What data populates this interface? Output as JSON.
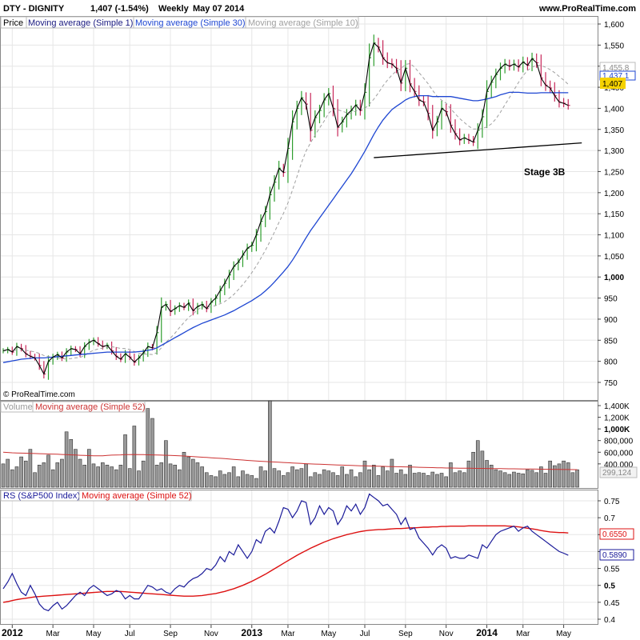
{
  "header": {
    "ticker": "DTY - DIGNITY",
    "quote": "1,407 (-1.54%)",
    "period": "Weekly",
    "date": "May 07 2014",
    "site": "www.ProRealTime.com"
  },
  "copyright": "© ProRealTime.com",
  "colors": {
    "up_bar": "#2e9e2e",
    "down_bar": "#c8285a",
    "ma1": "#000000",
    "ma30": "#1e46d2",
    "ma10": "#a0a0a0",
    "volume_ma": "#cc3333",
    "rs_line": "#1a1a99",
    "rs_ma": "#dd1111",
    "last_price_box": "#f5d200",
    "grid": "#e6e6e6"
  },
  "price_panel": {
    "legend": [
      {
        "label": "Price",
        "color": "#000000"
      },
      {
        "label": "Moving average (Simple 1)",
        "color": "#1a1a80"
      },
      {
        "label": "Moving average (Simple 30)",
        "color": "#1e46d2"
      },
      {
        "label": "Moving average (Simple 10)",
        "color": "#a0a0a0"
      }
    ],
    "annotation": "Stage 3B",
    "value_labels": {
      "ma10": "1,455.8",
      "ma30": "1,437.1",
      "last": "1,407"
    },
    "y_ticks": [
      "1,600",
      "1,550",
      "1,500",
      "1,450",
      "1,400",
      "1,350",
      "1,300",
      "1,250",
      "1,200",
      "1,150",
      "1,100",
      "1,050",
      "1,000",
      "950",
      "900",
      "850",
      "800",
      "750"
    ],
    "bold_ticks": [
      "1,500",
      "1,000"
    ]
  },
  "volume_panel": {
    "legend": [
      {
        "label": "Volume",
        "color": "#999999"
      },
      {
        "label": "Moving average (Simple 52)",
        "color": "#cc3333"
      }
    ],
    "y_ticks": [
      "1,400K",
      "1,200K",
      "1,000K",
      "800,000",
      "600,000",
      "400,000"
    ],
    "bold_ticks": [
      "1,000K"
    ],
    "value_label": "299,124"
  },
  "rs_panel": {
    "legend": [
      {
        "label": "RS (S&P500 Index)",
        "color": "#1a1a99"
      },
      {
        "label": "Moving average (Simple 52)",
        "color": "#dd1111"
      }
    ],
    "y_ticks": [
      "0.75",
      "0.7",
      "0.65",
      "0.6",
      "0.55",
      "0.5",
      "0.45",
      "0.4"
    ],
    "bold_ticks": [
      "0.5"
    ],
    "value_labels": {
      "rs_ma": "0.6550",
      "rs": "0.5890"
    }
  },
  "x_axis": {
    "labels": [
      {
        "text": "2012",
        "bold": true,
        "week": 2
      },
      {
        "text": "Mar",
        "bold": false,
        "week": 11
      },
      {
        "text": "May",
        "bold": false,
        "week": 20
      },
      {
        "text": "Jul",
        "bold": false,
        "week": 28
      },
      {
        "text": "Sep",
        "bold": false,
        "week": 37
      },
      {
        "text": "Nov",
        "bold": false,
        "week": 46
      },
      {
        "text": "2013",
        "bold": true,
        "week": 55
      },
      {
        "text": "Mar",
        "bold": false,
        "week": 63
      },
      {
        "text": "May",
        "bold": false,
        "week": 72
      },
      {
        "text": "Jul",
        "bold": false,
        "week": 80
      },
      {
        "text": "Sep",
        "bold": false,
        "week": 89
      },
      {
        "text": "Nov",
        "bold": false,
        "week": 98
      },
      {
        "text": "2014",
        "bold": true,
        "week": 107
      },
      {
        "text": "Mar",
        "bold": false,
        "week": 115
      },
      {
        "text": "May",
        "bold": false,
        "week": 124
      }
    ]
  },
  "chart_data": {
    "type": "line",
    "x_unit": "week",
    "price": {
      "ylim": [
        740,
        1625
      ],
      "close": [
        825,
        828,
        822,
        835,
        830,
        818,
        812,
        808,
        790,
        770,
        800,
        810,
        816,
        808,
        822,
        830,
        828,
        818,
        835,
        845,
        850,
        842,
        835,
        838,
        825,
        812,
        805,
        818,
        810,
        798,
        808,
        820,
        835,
        832,
        868,
        928,
        935,
        918,
        925,
        932,
        928,
        938,
        920,
        930,
        935,
        925,
        940,
        950,
        968,
        985,
        1005,
        1025,
        1035,
        1052,
        1068,
        1075,
        1100,
        1132,
        1155,
        1195,
        1225,
        1258,
        1248,
        1305,
        1368,
        1400,
        1425,
        1410,
        1348,
        1378,
        1395,
        1420,
        1435,
        1400,
        1355,
        1368,
        1385,
        1395,
        1408,
        1395,
        1438,
        1520,
        1555,
        1545,
        1520,
        1508,
        1505,
        1495,
        1460,
        1495,
        1458,
        1440,
        1420,
        1415,
        1388,
        1348,
        1368,
        1400,
        1392,
        1360,
        1340,
        1325,
        1330,
        1325,
        1320,
        1348,
        1380,
        1440,
        1462,
        1480,
        1495,
        1505,
        1500,
        1505,
        1498,
        1510,
        1502,
        1518,
        1508,
        1472,
        1455,
        1448,
        1430,
        1415,
        1412,
        1407
      ],
      "ma30": [
        797,
        799,
        801,
        803,
        805,
        806,
        807,
        808,
        808,
        808,
        809,
        810,
        811,
        812,
        813,
        814,
        815,
        816,
        817,
        818,
        819,
        820,
        821,
        822,
        822,
        822,
        822,
        822,
        822,
        822,
        823,
        824,
        826,
        828,
        832,
        838,
        844,
        850,
        856,
        862,
        868,
        874,
        880,
        885,
        890,
        894,
        898,
        902,
        906,
        910,
        915,
        920,
        926,
        932,
        938,
        944,
        951,
        958,
        967,
        977,
        988,
        1000,
        1012,
        1025,
        1040,
        1057,
        1075,
        1093,
        1110,
        1125,
        1140,
        1155,
        1170,
        1185,
        1200,
        1215,
        1230,
        1245,
        1262,
        1280,
        1298,
        1318,
        1338,
        1356,
        1372,
        1385,
        1397,
        1405,
        1412,
        1420,
        1425,
        1428,
        1430,
        1430,
        1430,
        1428,
        1428,
        1428,
        1428,
        1428,
        1426,
        1424,
        1422,
        1420,
        1418,
        1418,
        1420,
        1422,
        1425,
        1428,
        1432,
        1435,
        1438,
        1438,
        1438,
        1437,
        1436,
        1436,
        1436,
        1437,
        1437,
        1437,
        1437,
        1437,
        1437,
        1437
      ]
    },
    "resistance_line": {
      "from": {
        "week": 82,
        "price": 1283
      },
      "to": {
        "week": 128,
        "price": 1318
      }
    },
    "volume": {
      "ylim": [
        0,
        1500000
      ],
      "values": [
        400000,
        480000,
        300000,
        350000,
        520000,
        450000,
        650000,
        250000,
        380000,
        420000,
        550000,
        300000,
        420000,
        480000,
        950000,
        820000,
        650000,
        480000,
        380000,
        650000,
        400000,
        350000,
        420000,
        380000,
        350000,
        300000,
        380000,
        900000,
        320000,
        1050000,
        280000,
        450000,
        1350000,
        1180000,
        380000,
        420000,
        800000,
        400000,
        380000,
        300000,
        600000,
        520000,
        480000,
        420000,
        350000,
        250000,
        200000,
        180000,
        280000,
        220000,
        250000,
        350000,
        180000,
        280000,
        220000,
        200000,
        150000,
        350000,
        280000,
        1480000,
        320000,
        280000,
        200000,
        250000,
        350000,
        300000,
        320000,
        400000,
        180000,
        250000,
        220000,
        300000,
        280000,
        250000,
        200000,
        350000,
        220000,
        300000,
        180000,
        250000,
        450000,
        300000,
        380000,
        200000,
        350000,
        280000,
        480000,
        240000,
        300000,
        220000,
        380000,
        240000,
        250000,
        240000,
        200000,
        260000,
        220000,
        240000,
        180000,
        420000,
        250000,
        280000,
        250000,
        450000,
        600000,
        800000,
        620000,
        460000,
        380000,
        300000,
        280000,
        250000,
        220000,
        260000,
        240000,
        230000,
        300000,
        290000,
        250000,
        350000,
        240000,
        450000,
        370000,
        400000,
        450000,
        420000,
        250000,
        299124
      ],
      "ma52": [
        600000,
        595000,
        590000,
        588000,
        585000,
        583000,
        580000,
        578000,
        575000,
        573000,
        570000,
        568000,
        565000,
        562000,
        558000,
        555000,
        552000,
        548000,
        545000,
        542000,
        540000,
        538000,
        540000,
        545000,
        550000,
        553000,
        555000,
        558000,
        560000,
        562000,
        560000,
        558000,
        556000,
        554000,
        552000,
        550000,
        548000,
        545000,
        542000,
        540000,
        535000,
        530000,
        525000,
        520000,
        515000,
        510000,
        505000,
        500000,
        495000,
        490000,
        485000,
        478000,
        472000,
        466000,
        460000,
        455000,
        450000,
        445000,
        440000,
        436000,
        432000,
        428000,
        424000,
        420000,
        416000,
        412000,
        408000,
        404000,
        400000,
        397000,
        394000,
        391000,
        388000,
        385000,
        382000,
        379000,
        376000,
        373000,
        370000,
        368000,
        366000,
        364000,
        362000,
        360000,
        358000,
        356000,
        354000,
        352000,
        350000,
        348000,
        346000,
        344000,
        342000,
        340000,
        338000,
        336000,
        334000,
        332000,
        330000,
        329000,
        328000,
        327000,
        326000,
        325000,
        324000,
        323000,
        322000,
        321000,
        320000,
        319000,
        318000,
        317000,
        316000,
        315000,
        314000,
        313000,
        312000,
        311000,
        310000,
        309000,
        308000,
        307000,
        306000,
        305000,
        304000,
        303000,
        302000,
        301000
      ]
    },
    "rs": {
      "ylim": [
        0.395,
        0.78
      ],
      "values": [
        0.49,
        0.51,
        0.535,
        0.505,
        0.48,
        0.47,
        0.5,
        0.475,
        0.445,
        0.43,
        0.425,
        0.44,
        0.45,
        0.43,
        0.44,
        0.455,
        0.47,
        0.48,
        0.47,
        0.49,
        0.5,
        0.49,
        0.48,
        0.47,
        0.475,
        0.485,
        0.48,
        0.46,
        0.47,
        0.46,
        0.46,
        0.48,
        0.5,
        0.495,
        0.485,
        0.49,
        0.48,
        0.475,
        0.49,
        0.5,
        0.495,
        0.51,
        0.52,
        0.525,
        0.535,
        0.55,
        0.545,
        0.56,
        0.585,
        0.57,
        0.6,
        0.59,
        0.62,
        0.6,
        0.58,
        0.6,
        0.635,
        0.625,
        0.66,
        0.67,
        0.655,
        0.69,
        0.73,
        0.725,
        0.7,
        0.72,
        0.75,
        0.745,
        0.68,
        0.7,
        0.735,
        0.71,
        0.73,
        0.72,
        0.68,
        0.7,
        0.735,
        0.72,
        0.74,
        0.71,
        0.73,
        0.77,
        0.76,
        0.75,
        0.735,
        0.74,
        0.725,
        0.71,
        0.68,
        0.7,
        0.665,
        0.67,
        0.64,
        0.625,
        0.61,
        0.59,
        0.61,
        0.62,
        0.61,
        0.58,
        0.585,
        0.58,
        0.58,
        0.59,
        0.585,
        0.58,
        0.62,
        0.61,
        0.63,
        0.65,
        0.66,
        0.665,
        0.67,
        0.675,
        0.66,
        0.67,
        0.675,
        0.66,
        0.65,
        0.64,
        0.63,
        0.62,
        0.61,
        0.6,
        0.595,
        0.589
      ],
      "ma52": [
        0.45,
        0.452,
        0.455,
        0.458,
        0.46,
        0.462,
        0.464,
        0.466,
        0.467,
        0.468,
        0.469,
        0.47,
        0.471,
        0.472,
        0.473,
        0.474,
        0.475,
        0.476,
        0.477,
        0.478,
        0.479,
        0.48,
        0.481,
        0.482,
        0.482,
        0.482,
        0.482,
        0.481,
        0.48,
        0.479,
        0.478,
        0.477,
        0.476,
        0.475,
        0.474,
        0.473,
        0.472,
        0.471,
        0.47,
        0.469,
        0.468,
        0.468,
        0.468,
        0.469,
        0.47,
        0.472,
        0.474,
        0.476,
        0.479,
        0.482,
        0.486,
        0.49,
        0.495,
        0.5,
        0.506,
        0.512,
        0.519,
        0.526,
        0.533,
        0.541,
        0.549,
        0.557,
        0.565,
        0.573,
        0.581,
        0.589,
        0.596,
        0.603,
        0.61,
        0.616,
        0.622,
        0.628,
        0.633,
        0.638,
        0.642,
        0.646,
        0.65,
        0.653,
        0.656,
        0.659,
        0.661,
        0.663,
        0.664,
        0.665,
        0.665,
        0.666,
        0.667,
        0.668,
        0.668,
        0.669,
        0.67,
        0.67,
        0.671,
        0.672,
        0.672,
        0.673,
        0.673,
        0.674,
        0.674,
        0.675,
        0.675,
        0.675,
        0.675,
        0.676,
        0.676,
        0.676,
        0.676,
        0.676,
        0.676,
        0.676,
        0.676,
        0.676,
        0.675,
        0.674,
        0.673,
        0.671,
        0.669,
        0.667,
        0.665,
        0.662,
        0.66,
        0.658,
        0.657,
        0.656,
        0.656,
        0.655
      ]
    }
  }
}
